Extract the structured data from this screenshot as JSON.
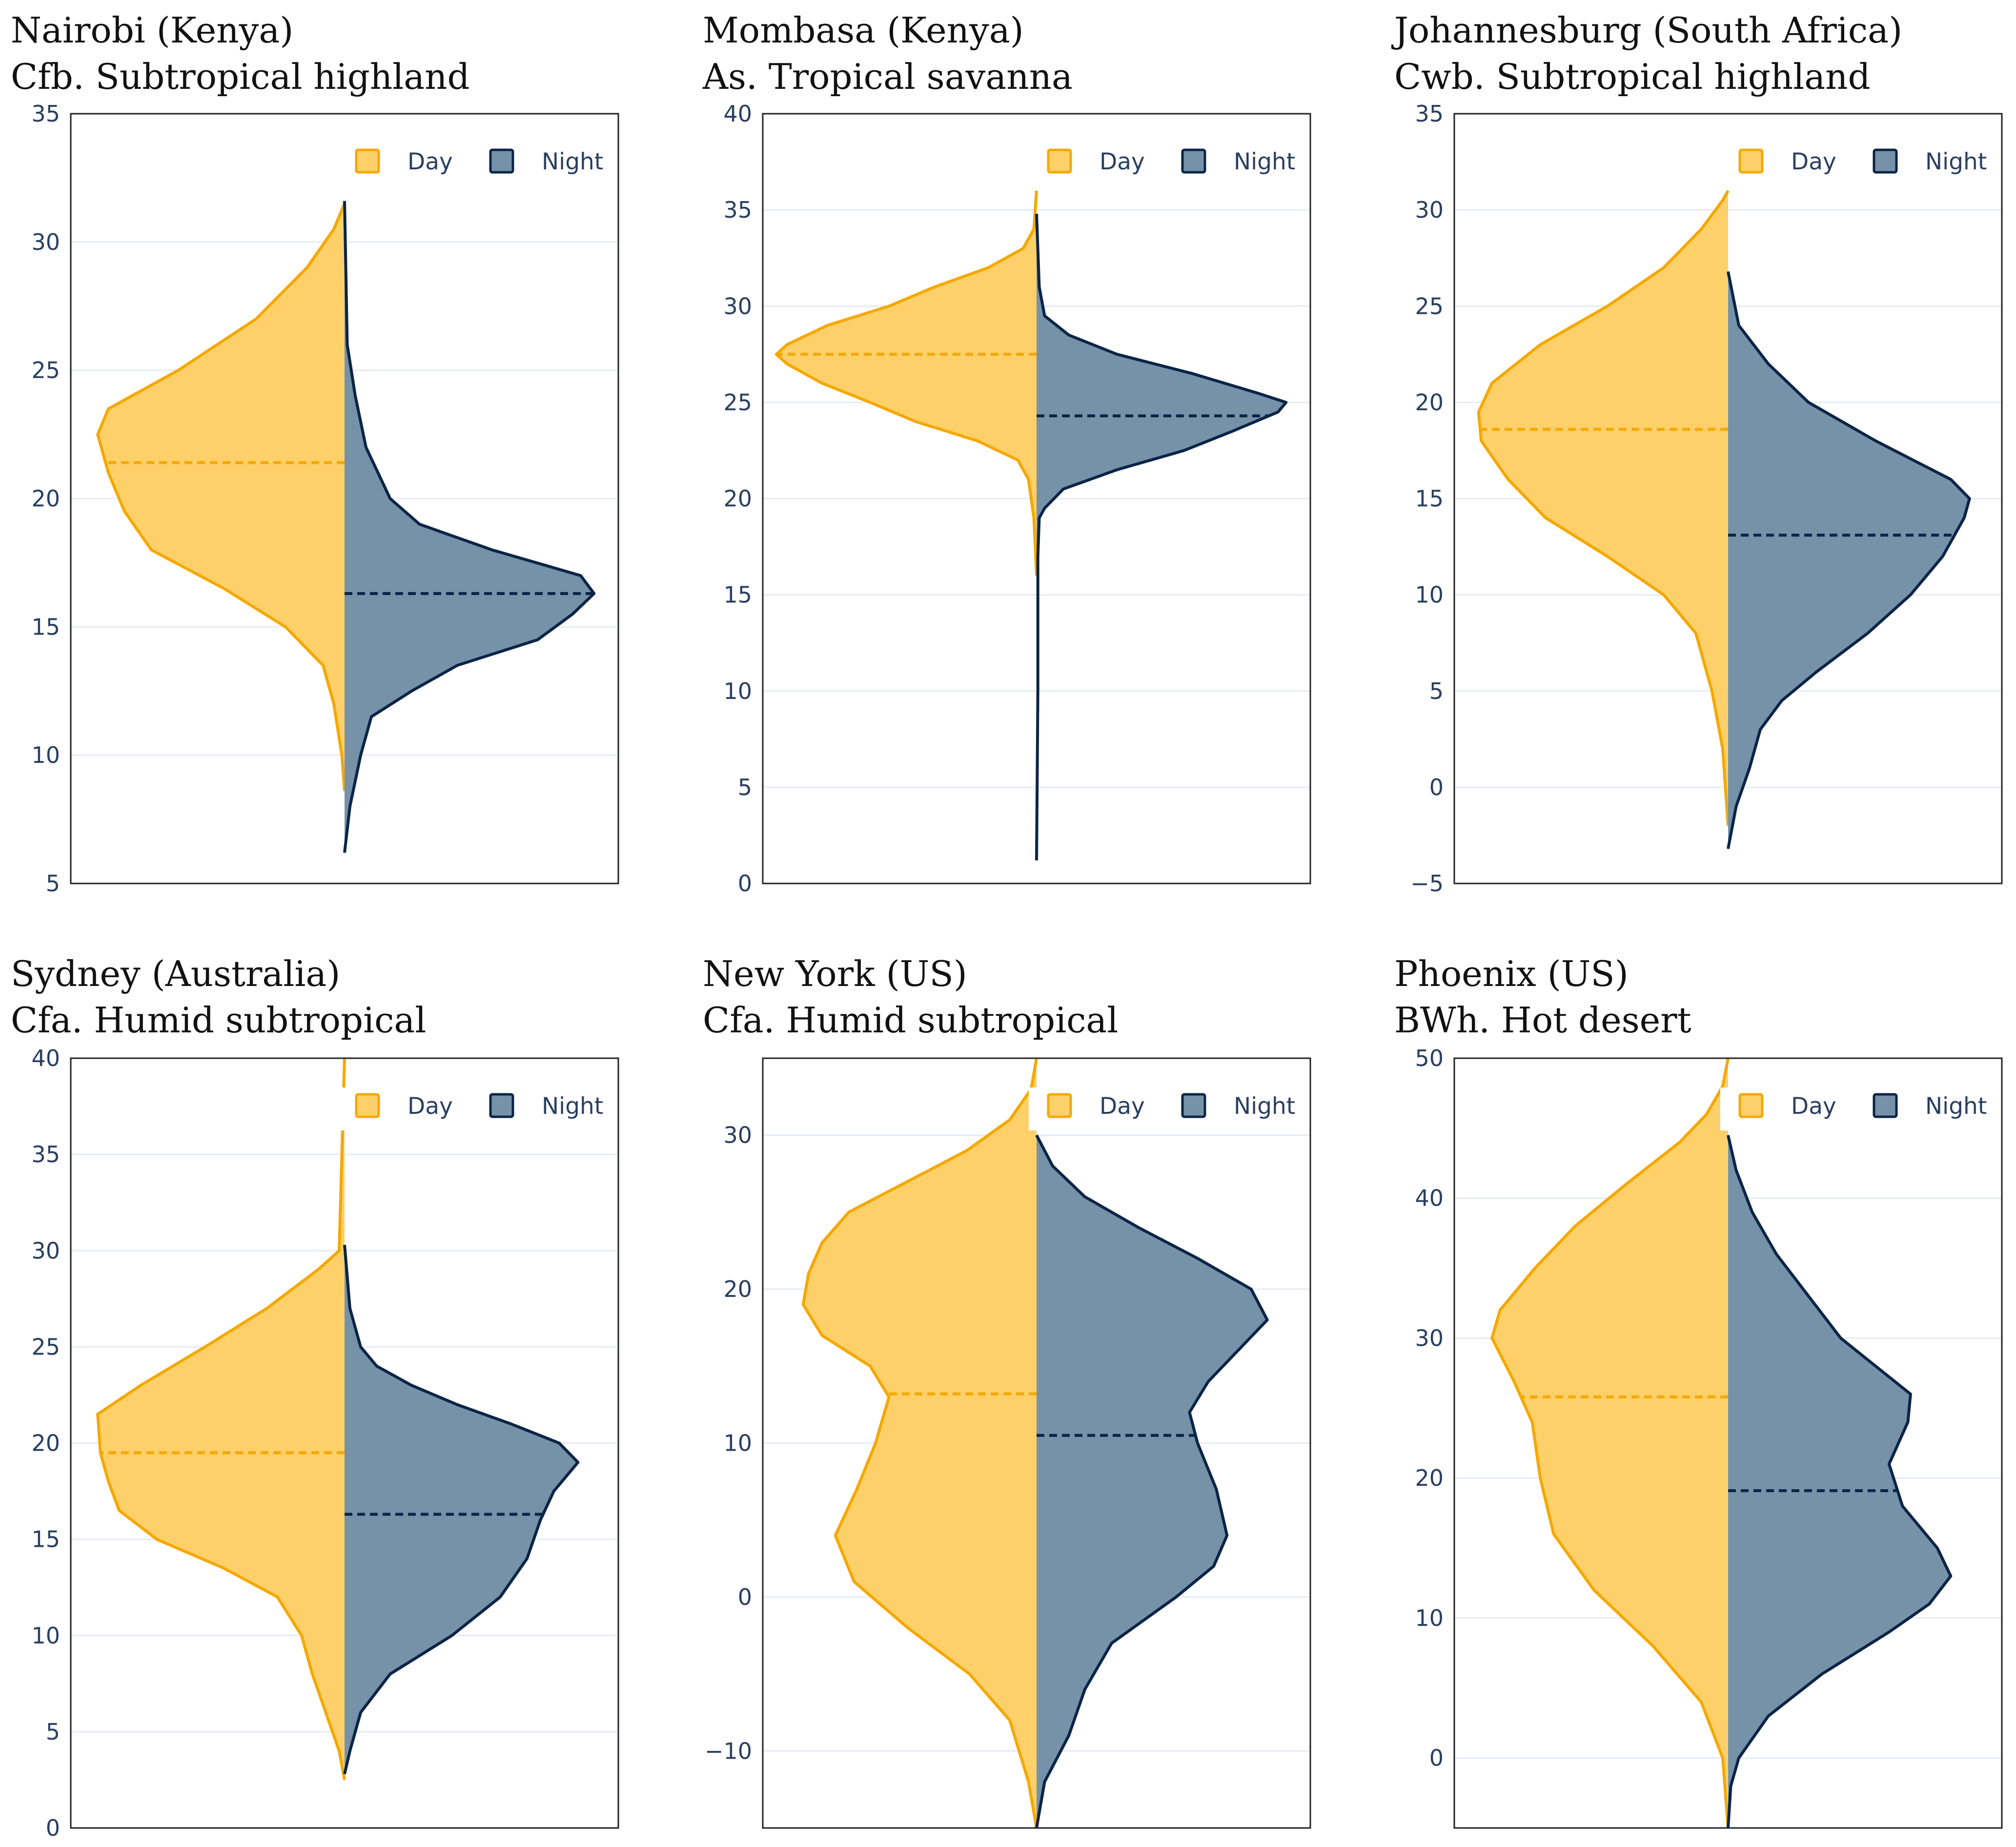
{
  "legend": {
    "day_label": "Day",
    "night_label": "Night"
  },
  "colors": {
    "day_line": "#f5a800",
    "day_fill": "#fdd06a",
    "night_line": "#0b2447",
    "night_fill": "#7592a8",
    "grid": "#e5ecf6",
    "axis": "#222222"
  },
  "chart_data": [
    {
      "type": "split-violin",
      "title": "Nairobi (Kenya)",
      "subtitle": "Cfb. Subtropical highland",
      "ylim": [
        5,
        35
      ],
      "yticks": [
        5,
        10,
        15,
        20,
        25,
        30,
        35
      ],
      "grid": true,
      "legend_position": "top-right",
      "day": {
        "min": 8.6,
        "max": 31.5,
        "median": 21.4,
        "profile": [
          [
            8.6,
            0
          ],
          [
            10,
            0.01
          ],
          [
            12,
            0.04
          ],
          [
            13.5,
            0.08
          ],
          [
            15,
            0.22
          ],
          [
            16.5,
            0.45
          ],
          [
            18,
            0.72
          ],
          [
            19.5,
            0.82
          ],
          [
            21,
            0.88
          ],
          [
            22.5,
            0.92
          ],
          [
            23.5,
            0.88
          ],
          [
            25,
            0.62
          ],
          [
            27,
            0.33
          ],
          [
            29,
            0.14
          ],
          [
            30.5,
            0.04
          ],
          [
            31.5,
            0
          ]
        ]
      },
      "night": {
        "min": 6.2,
        "max": 31.6,
        "median": 16.3,
        "profile": [
          [
            6.2,
            0
          ],
          [
            8,
            0.02
          ],
          [
            10,
            0.06
          ],
          [
            11.5,
            0.1
          ],
          [
            12.5,
            0.25
          ],
          [
            13.5,
            0.42
          ],
          [
            14.5,
            0.72
          ],
          [
            15.5,
            0.85
          ],
          [
            16.3,
            0.93
          ],
          [
            17,
            0.88
          ],
          [
            18,
            0.55
          ],
          [
            19,
            0.28
          ],
          [
            20,
            0.17
          ],
          [
            22,
            0.08
          ],
          [
            24,
            0.04
          ],
          [
            26,
            0.01
          ],
          [
            31.6,
            0
          ]
        ]
      }
    },
    {
      "type": "split-violin",
      "title": "Mombasa (Kenya)",
      "subtitle": "As. Tropical savanna",
      "ylim": [
        0,
        40
      ],
      "yticks": [
        0,
        5,
        10,
        15,
        20,
        25,
        30,
        35,
        40
      ],
      "grid": true,
      "legend_position": "top-right",
      "day": {
        "min": 16,
        "max": 36,
        "median": 27.5,
        "profile": [
          [
            16,
            0
          ],
          [
            19,
            0.01
          ],
          [
            21,
            0.03
          ],
          [
            22,
            0.07
          ],
          [
            23,
            0.22
          ],
          [
            24,
            0.45
          ],
          [
            25,
            0.62
          ],
          [
            26,
            0.8
          ],
          [
            27,
            0.93
          ],
          [
            27.5,
            0.97
          ],
          [
            28,
            0.93
          ],
          [
            29,
            0.78
          ],
          [
            30,
            0.55
          ],
          [
            31,
            0.38
          ],
          [
            32,
            0.18
          ],
          [
            33,
            0.05
          ],
          [
            34,
            0.01
          ],
          [
            36,
            0
          ]
        ]
      },
      "night": {
        "min": 1.2,
        "max": 34.8,
        "median": 24.3,
        "profile": [
          [
            1.2,
            0
          ],
          [
            10,
            0.005
          ],
          [
            17,
            0.005
          ],
          [
            19,
            0.01
          ],
          [
            19.5,
            0.03
          ],
          [
            20.5,
            0.1
          ],
          [
            21.5,
            0.3
          ],
          [
            22.5,
            0.55
          ],
          [
            23.5,
            0.73
          ],
          [
            24.5,
            0.9
          ],
          [
            25,
            0.93
          ],
          [
            25.5,
            0.82
          ],
          [
            26.5,
            0.58
          ],
          [
            27.5,
            0.3
          ],
          [
            28.5,
            0.12
          ],
          [
            29.5,
            0.03
          ],
          [
            31,
            0.01
          ],
          [
            34.8,
            0
          ]
        ]
      }
    },
    {
      "type": "split-violin",
      "title": "Johannesburg (South Africa)",
      "subtitle": "Cwb. Subtropical highland",
      "ylim": [
        -5,
        35
      ],
      "yticks": [
        -5,
        0,
        5,
        10,
        15,
        20,
        25,
        30,
        35
      ],
      "grid": true,
      "legend_position": "top-right",
      "day": {
        "min": -2,
        "max": 31,
        "median": 18.6,
        "profile": [
          [
            -2,
            0
          ],
          [
            2,
            0.02
          ],
          [
            5,
            0.06
          ],
          [
            8,
            0.12
          ],
          [
            10,
            0.24
          ],
          [
            12,
            0.45
          ],
          [
            14,
            0.68
          ],
          [
            16,
            0.82
          ],
          [
            18,
            0.92
          ],
          [
            19.5,
            0.93
          ],
          [
            21,
            0.88
          ],
          [
            23,
            0.7
          ],
          [
            25,
            0.45
          ],
          [
            27,
            0.24
          ],
          [
            29,
            0.1
          ],
          [
            30.5,
            0.02
          ],
          [
            31,
            0
          ]
        ]
      },
      "night": {
        "min": -3.2,
        "max": 26.8,
        "median": 13.1,
        "profile": [
          [
            -3.2,
            0
          ],
          [
            -1,
            0.03
          ],
          [
            1,
            0.08
          ],
          [
            3,
            0.12
          ],
          [
            4.5,
            0.2
          ],
          [
            6,
            0.33
          ],
          [
            8,
            0.52
          ],
          [
            10,
            0.68
          ],
          [
            12,
            0.8
          ],
          [
            14,
            0.88
          ],
          [
            15,
            0.9
          ],
          [
            16,
            0.83
          ],
          [
            18,
            0.55
          ],
          [
            20,
            0.3
          ],
          [
            22,
            0.15
          ],
          [
            24,
            0.04
          ],
          [
            26.8,
            0
          ]
        ]
      }
    },
    {
      "type": "split-violin",
      "title": "Sydney (Australia)",
      "subtitle": "Cfa. Humid subtropical",
      "ylim": [
        0,
        40
      ],
      "yticks": [
        0,
        5,
        10,
        15,
        20,
        25,
        30,
        35,
        40
      ],
      "grid": true,
      "legend_position": "top-right",
      "day": {
        "min": 2.5,
        "max": 40,
        "median": 19.5,
        "profile": [
          [
            2.5,
            0
          ],
          [
            4,
            0.02
          ],
          [
            6,
            0.07
          ],
          [
            8,
            0.12
          ],
          [
            10,
            0.16
          ],
          [
            12,
            0.25
          ],
          [
            13.5,
            0.45
          ],
          [
            15,
            0.7
          ],
          [
            16.5,
            0.84
          ],
          [
            18,
            0.88
          ],
          [
            19.5,
            0.91
          ],
          [
            21.5,
            0.92
          ],
          [
            23,
            0.76
          ],
          [
            25,
            0.52
          ],
          [
            27,
            0.29
          ],
          [
            29,
            0.1
          ],
          [
            30,
            0.02
          ],
          [
            35,
            0.01
          ],
          [
            40,
            0
          ]
        ]
      },
      "night": {
        "min": 2.8,
        "max": 30.3,
        "median": 16.3,
        "profile": [
          [
            2.8,
            0
          ],
          [
            4,
            0.02
          ],
          [
            6,
            0.06
          ],
          [
            8,
            0.17
          ],
          [
            10,
            0.4
          ],
          [
            12,
            0.58
          ],
          [
            14,
            0.68
          ],
          [
            16,
            0.73
          ],
          [
            17.5,
            0.78
          ],
          [
            19,
            0.87
          ],
          [
            20,
            0.8
          ],
          [
            21,
            0.62
          ],
          [
            22,
            0.42
          ],
          [
            23,
            0.25
          ],
          [
            24,
            0.12
          ],
          [
            25,
            0.06
          ],
          [
            27,
            0.02
          ],
          [
            30.3,
            0
          ]
        ]
      }
    },
    {
      "type": "split-violin",
      "title": "New York (US)",
      "subtitle": "Cfa. Humid subtropical",
      "ylim": [
        -15,
        35
      ],
      "yticks": [
        -10,
        0,
        10,
        20,
        30
      ],
      "grid": true,
      "legend_position": "top-right",
      "day": {
        "min": -15,
        "max": 35,
        "median": 13.2,
        "profile": [
          [
            -15,
            0
          ],
          [
            -12,
            0.03
          ],
          [
            -8,
            0.1
          ],
          [
            -5,
            0.25
          ],
          [
            -2,
            0.48
          ],
          [
            1,
            0.68
          ],
          [
            4,
            0.75
          ],
          [
            7,
            0.67
          ],
          [
            10,
            0.6
          ],
          [
            13,
            0.55
          ],
          [
            15,
            0.62
          ],
          [
            17,
            0.8
          ],
          [
            19,
            0.87
          ],
          [
            21,
            0.85
          ],
          [
            23,
            0.8
          ],
          [
            25,
            0.7
          ],
          [
            27,
            0.48
          ],
          [
            29,
            0.26
          ],
          [
            31,
            0.1
          ],
          [
            33,
            0.02
          ],
          [
            35,
            0
          ]
        ]
      },
      "night": {
        "min": -15,
        "max": 30,
        "median": 10.5,
        "profile": [
          [
            -15,
            0
          ],
          [
            -12,
            0.03
          ],
          [
            -9,
            0.12
          ],
          [
            -6,
            0.18
          ],
          [
            -3,
            0.28
          ],
          [
            0,
            0.52
          ],
          [
            2,
            0.66
          ],
          [
            4,
            0.71
          ],
          [
            7,
            0.67
          ],
          [
            10,
            0.6
          ],
          [
            12,
            0.57
          ],
          [
            14,
            0.64
          ],
          [
            16,
            0.75
          ],
          [
            18,
            0.86
          ],
          [
            20,
            0.8
          ],
          [
            22,
            0.6
          ],
          [
            24,
            0.38
          ],
          [
            26,
            0.18
          ],
          [
            28,
            0.06
          ],
          [
            30,
            0
          ]
        ]
      }
    },
    {
      "type": "split-violin",
      "title": "Phoenix (US)",
      "subtitle": "BWh. Hot desert",
      "ylim": [
        -5,
        50
      ],
      "yticks": [
        0,
        10,
        20,
        30,
        40,
        50
      ],
      "grid": true,
      "legend_position": "top-right",
      "day": {
        "min": -5,
        "max": 50,
        "median": 25.8,
        "profile": [
          [
            -5,
            0
          ],
          [
            0,
            0.02
          ],
          [
            4,
            0.1
          ],
          [
            8,
            0.28
          ],
          [
            12,
            0.5
          ],
          [
            16,
            0.65
          ],
          [
            20,
            0.7
          ],
          [
            24,
            0.73
          ],
          [
            27,
            0.8
          ],
          [
            30,
            0.88
          ],
          [
            32,
            0.85
          ],
          [
            35,
            0.72
          ],
          [
            38,
            0.57
          ],
          [
            41,
            0.38
          ],
          [
            44,
            0.18
          ],
          [
            46,
            0.08
          ],
          [
            48,
            0.02
          ],
          [
            50,
            0
          ]
        ]
      },
      "night": {
        "min": -5,
        "max": 44.5,
        "median": 19.1,
        "profile": [
          [
            -5,
            0
          ],
          [
            -2,
            0.01
          ],
          [
            0,
            0.04
          ],
          [
            3,
            0.15
          ],
          [
            6,
            0.35
          ],
          [
            9,
            0.6
          ],
          [
            11,
            0.75
          ],
          [
            13,
            0.83
          ],
          [
            15,
            0.78
          ],
          [
            18,
            0.65
          ],
          [
            21,
            0.6
          ],
          [
            24,
            0.67
          ],
          [
            26,
            0.68
          ],
          [
            28,
            0.55
          ],
          [
            30,
            0.42
          ],
          [
            33,
            0.3
          ],
          [
            36,
            0.18
          ],
          [
            39,
            0.09
          ],
          [
            42,
            0.03
          ],
          [
            44.5,
            0
          ]
        ]
      }
    }
  ]
}
